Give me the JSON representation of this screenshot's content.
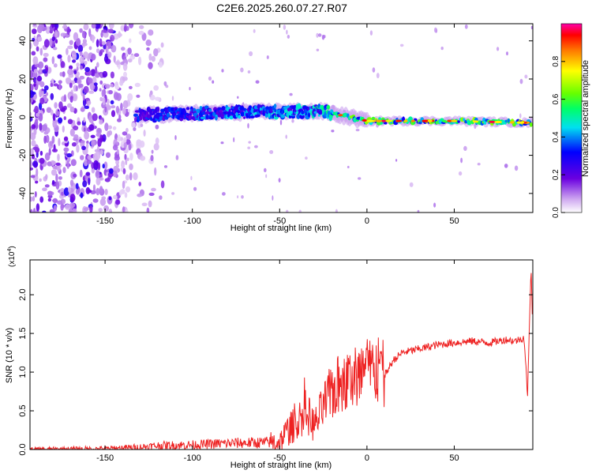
{
  "title": "C2E6.2025.260.07.27.R07",
  "chart_data": [
    {
      "type": "heatmap",
      "xlabel": "Height of straight line (km)",
      "ylabel": "Frequency (Hz)",
      "xlim": [
        -193,
        95
      ],
      "ylim": [
        -50,
        49
      ],
      "xticks": [
        -150,
        -100,
        -50,
        0,
        50
      ],
      "yticks": [
        -40,
        -20,
        0,
        20,
        40
      ],
      "colorbar": {
        "label": "Normalized spectral amplitude",
        "range": [
          0,
          1
        ],
        "ticks": [
          "0.0",
          "0.2",
          "0.4",
          "0.6",
          "0.8"
        ],
        "tick_values": [
          0,
          0.2,
          0.4,
          0.6,
          0.8
        ]
      },
      "ridge": {
        "x": [
          -130,
          -100,
          -50,
          -25,
          0,
          50,
          95
        ],
        "freq_hz": [
          1,
          2,
          3,
          3,
          -2,
          -2,
          -3
        ],
        "amplitude": [
          0.3,
          0.35,
          0.4,
          0.45,
          0.6,
          0.55,
          0.6
        ]
      },
      "noise_region": {
        "x_start": -193,
        "x_end": -125,
        "amplitude_max": 0.25
      }
    },
    {
      "type": "line",
      "xlabel": "Height of straight line (km)",
      "ylabel": "SNR (10 * v/v)",
      "multiplier": "(x10",
      "multiplier_exp": "4",
      "multiplier_close": ")",
      "xlim": [
        -193,
        95
      ],
      "ylim": [
        0,
        2.45
      ],
      "xticks": [
        -150,
        -100,
        -50,
        0,
        50
      ],
      "yticks": [
        "0.0",
        "0.5",
        "1.0",
        "1.5",
        "2.0"
      ],
      "ytick_values": [
        0,
        0.5,
        1.0,
        1.5,
        2.0
      ],
      "series": [
        {
          "color": "#ee2222",
          "x": [
            -193,
            -150,
            -130,
            -120,
            -100,
            -80,
            -60,
            -50,
            -45,
            -40,
            -35,
            -30,
            -25,
            -20,
            -15,
            -10,
            -5,
            0,
            5,
            10,
            15,
            20,
            30,
            40,
            50,
            60,
            70,
            75,
            80,
            85,
            90,
            92,
            94,
            95
          ],
          "y": [
            0.0,
            0.01,
            0.03,
            0.05,
            0.06,
            0.08,
            0.09,
            0.1,
            0.25,
            0.35,
            0.5,
            0.3,
            0.55,
            0.75,
            0.85,
            0.9,
            0.95,
            1.0,
            1.05,
            0.95,
            1.15,
            1.25,
            1.3,
            1.35,
            1.38,
            1.4,
            1.38,
            1.4,
            1.42,
            1.4,
            1.45,
            0.7,
            2.4,
            1.5
          ]
        }
      ]
    }
  ]
}
